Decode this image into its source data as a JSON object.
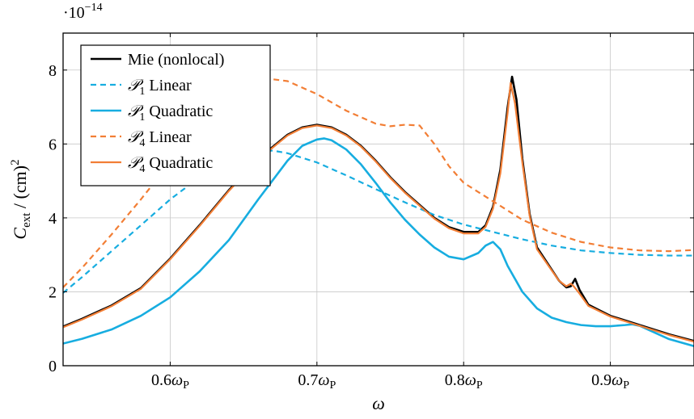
{
  "chart_data": {
    "type": "line",
    "title": "",
    "xlabel": "ω",
    "ylabel": "C_ext / (cm)²",
    "ylabel_main": "C",
    "ylabel_sub": "ext",
    "ylabel_rest": " / (cm)",
    "ylabel_sup": "2",
    "y_multiplier": "·10",
    "y_multiplier_exp": "−14",
    "xlim": [
      0.527,
      0.957
    ],
    "ylim": [
      0,
      9
    ],
    "grid": true,
    "legend_position": "top-left",
    "x_ticks": [
      {
        "value": 0.6,
        "label_num": "0.6",
        "label_sym": "ω",
        "label_sub": "P"
      },
      {
        "value": 0.7,
        "label_num": "0.7",
        "label_sym": "ω",
        "label_sub": "P"
      },
      {
        "value": 0.8,
        "label_num": "0.8",
        "label_sym": "ω",
        "label_sub": "P"
      },
      {
        "value": 0.9,
        "label_num": "0.9",
        "label_sym": "ω",
        "label_sub": "P"
      }
    ],
    "y_ticks": [
      {
        "value": 0,
        "label": "0"
      },
      {
        "value": 2,
        "label": "2"
      },
      {
        "value": 4,
        "label": "4"
      },
      {
        "value": 6,
        "label": "6"
      },
      {
        "value": 8,
        "label": "8"
      }
    ],
    "series": [
      {
        "name": "Mie (nonlocal)",
        "name_prefix": "",
        "name_sub": "",
        "name_text": "Mie (nonlocal)",
        "color": "#000000",
        "dash": "solid",
        "width": 2.6,
        "points": [
          [
            0.527,
            1.06
          ],
          [
            0.54,
            1.27
          ],
          [
            0.56,
            1.63
          ],
          [
            0.58,
            2.1
          ],
          [
            0.6,
            2.9
          ],
          [
            0.62,
            3.8
          ],
          [
            0.64,
            4.75
          ],
          [
            0.66,
            5.6
          ],
          [
            0.68,
            6.25
          ],
          [
            0.69,
            6.45
          ],
          [
            0.7,
            6.52
          ],
          [
            0.71,
            6.45
          ],
          [
            0.72,
            6.25
          ],
          [
            0.73,
            5.95
          ],
          [
            0.74,
            5.55
          ],
          [
            0.75,
            5.1
          ],
          [
            0.76,
            4.7
          ],
          [
            0.77,
            4.35
          ],
          [
            0.78,
            4.0
          ],
          [
            0.79,
            3.75
          ],
          [
            0.8,
            3.62
          ],
          [
            0.81,
            3.62
          ],
          [
            0.815,
            3.8
          ],
          [
            0.82,
            4.3
          ],
          [
            0.825,
            5.3
          ],
          [
            0.83,
            7.0
          ],
          [
            0.833,
            7.82
          ],
          [
            0.836,
            7.2
          ],
          [
            0.84,
            5.6
          ],
          [
            0.845,
            4.1
          ],
          [
            0.85,
            3.2
          ],
          [
            0.86,
            2.6
          ],
          [
            0.865,
            2.3
          ],
          [
            0.87,
            2.12
          ],
          [
            0.873,
            2.15
          ],
          [
            0.876,
            2.35
          ],
          [
            0.879,
            2.05
          ],
          [
            0.885,
            1.65
          ],
          [
            0.9,
            1.35
          ],
          [
            0.92,
            1.1
          ],
          [
            0.94,
            0.85
          ],
          [
            0.957,
            0.67
          ]
        ]
      },
      {
        "name": "P1 Linear",
        "name_prefix": "𝒫",
        "name_sub": "1",
        "name_text": " Linear",
        "color": "#17ade0",
        "dash": "dashed",
        "width": 2.2,
        "points": [
          [
            0.527,
            1.97
          ],
          [
            0.54,
            2.4
          ],
          [
            0.56,
            3.1
          ],
          [
            0.58,
            3.8
          ],
          [
            0.6,
            4.5
          ],
          [
            0.62,
            5.1
          ],
          [
            0.64,
            5.55
          ],
          [
            0.66,
            5.8
          ],
          [
            0.67,
            5.82
          ],
          [
            0.68,
            5.75
          ],
          [
            0.7,
            5.5
          ],
          [
            0.72,
            5.15
          ],
          [
            0.74,
            4.78
          ],
          [
            0.76,
            4.42
          ],
          [
            0.78,
            4.08
          ],
          [
            0.8,
            3.82
          ],
          [
            0.82,
            3.62
          ],
          [
            0.84,
            3.42
          ],
          [
            0.86,
            3.25
          ],
          [
            0.88,
            3.12
          ],
          [
            0.9,
            3.05
          ],
          [
            0.92,
            3.0
          ],
          [
            0.94,
            2.98
          ],
          [
            0.957,
            2.98
          ]
        ]
      },
      {
        "name": "P1 Quadratic",
        "name_prefix": "𝒫",
        "name_sub": "1",
        "name_text": " Quadratic",
        "color": "#17ade0",
        "dash": "solid",
        "width": 2.6,
        "points": [
          [
            0.527,
            0.6
          ],
          [
            0.54,
            0.73
          ],
          [
            0.56,
            0.98
          ],
          [
            0.58,
            1.35
          ],
          [
            0.6,
            1.85
          ],
          [
            0.62,
            2.55
          ],
          [
            0.64,
            3.4
          ],
          [
            0.66,
            4.5
          ],
          [
            0.68,
            5.55
          ],
          [
            0.69,
            5.95
          ],
          [
            0.7,
            6.12
          ],
          [
            0.705,
            6.15
          ],
          [
            0.71,
            6.1
          ],
          [
            0.72,
            5.85
          ],
          [
            0.73,
            5.45
          ],
          [
            0.74,
            4.95
          ],
          [
            0.75,
            4.42
          ],
          [
            0.76,
            3.95
          ],
          [
            0.77,
            3.55
          ],
          [
            0.78,
            3.2
          ],
          [
            0.79,
            2.95
          ],
          [
            0.8,
            2.88
          ],
          [
            0.81,
            3.05
          ],
          [
            0.815,
            3.25
          ],
          [
            0.82,
            3.35
          ],
          [
            0.825,
            3.15
          ],
          [
            0.83,
            2.7
          ],
          [
            0.84,
            2.0
          ],
          [
            0.85,
            1.55
          ],
          [
            0.86,
            1.3
          ],
          [
            0.87,
            1.18
          ],
          [
            0.88,
            1.1
          ],
          [
            0.89,
            1.07
          ],
          [
            0.9,
            1.07
          ],
          [
            0.91,
            1.1
          ],
          [
            0.915,
            1.12
          ],
          [
            0.92,
            1.08
          ],
          [
            0.93,
            0.9
          ],
          [
            0.94,
            0.72
          ],
          [
            0.957,
            0.53
          ]
        ]
      },
      {
        "name": "P4 Linear",
        "name_prefix": "𝒫",
        "name_sub": "4",
        "name_text": " Linear",
        "color": "#f27e35",
        "dash": "dashed",
        "width": 2.2,
        "points": [
          [
            0.527,
            2.12
          ],
          [
            0.54,
            2.65
          ],
          [
            0.56,
            3.55
          ],
          [
            0.58,
            4.5
          ],
          [
            0.6,
            5.5
          ],
          [
            0.62,
            6.45
          ],
          [
            0.64,
            7.2
          ],
          [
            0.66,
            7.68
          ],
          [
            0.67,
            7.75
          ],
          [
            0.68,
            7.7
          ],
          [
            0.7,
            7.35
          ],
          [
            0.72,
            6.9
          ],
          [
            0.74,
            6.55
          ],
          [
            0.75,
            6.48
          ],
          [
            0.76,
            6.52
          ],
          [
            0.77,
            6.5
          ],
          [
            0.78,
            6.0
          ],
          [
            0.79,
            5.4
          ],
          [
            0.8,
            4.95
          ],
          [
            0.82,
            4.45
          ],
          [
            0.84,
            3.95
          ],
          [
            0.86,
            3.6
          ],
          [
            0.88,
            3.35
          ],
          [
            0.9,
            3.2
          ],
          [
            0.92,
            3.12
          ],
          [
            0.94,
            3.1
          ],
          [
            0.957,
            3.13
          ]
        ]
      },
      {
        "name": "P4 Quadratic",
        "name_prefix": "𝒫",
        "name_sub": "4",
        "name_text": " Quadratic",
        "color": "#f27e35",
        "dash": "solid",
        "width": 2.2,
        "points": [
          [
            0.527,
            1.04
          ],
          [
            0.54,
            1.25
          ],
          [
            0.56,
            1.61
          ],
          [
            0.58,
            2.08
          ],
          [
            0.6,
            2.88
          ],
          [
            0.62,
            3.78
          ],
          [
            0.64,
            4.73
          ],
          [
            0.66,
            5.58
          ],
          [
            0.68,
            6.23
          ],
          [
            0.69,
            6.43
          ],
          [
            0.7,
            6.5
          ],
          [
            0.71,
            6.43
          ],
          [
            0.72,
            6.23
          ],
          [
            0.73,
            5.93
          ],
          [
            0.74,
            5.53
          ],
          [
            0.75,
            5.08
          ],
          [
            0.76,
            4.68
          ],
          [
            0.77,
            4.33
          ],
          [
            0.78,
            3.98
          ],
          [
            0.79,
            3.72
          ],
          [
            0.8,
            3.58
          ],
          [
            0.81,
            3.58
          ],
          [
            0.815,
            3.76
          ],
          [
            0.82,
            4.25
          ],
          [
            0.825,
            5.2
          ],
          [
            0.83,
            6.85
          ],
          [
            0.832,
            7.65
          ],
          [
            0.835,
            7.1
          ],
          [
            0.84,
            5.5
          ],
          [
            0.845,
            4.05
          ],
          [
            0.85,
            3.15
          ],
          [
            0.86,
            2.58
          ],
          [
            0.865,
            2.3
          ],
          [
            0.87,
            2.15
          ],
          [
            0.873,
            2.22
          ],
          [
            0.875,
            2.15
          ],
          [
            0.879,
            1.95
          ],
          [
            0.885,
            1.62
          ],
          [
            0.9,
            1.33
          ],
          [
            0.92,
            1.08
          ],
          [
            0.94,
            0.83
          ],
          [
            0.957,
            0.65
          ]
        ]
      }
    ]
  }
}
